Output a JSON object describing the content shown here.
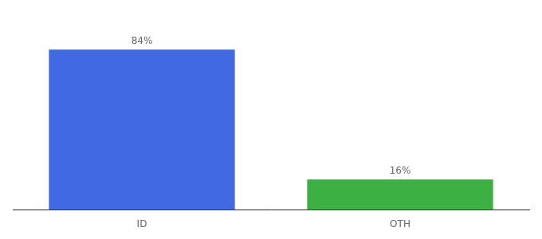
{
  "chart_data": {
    "type": "bar",
    "categories": [
      "ID",
      "OTH"
    ],
    "values": [
      84,
      16
    ],
    "value_labels": [
      "84%",
      "16%"
    ],
    "colors": [
      "#4169E1",
      "#3CB043"
    ],
    "ylim": [
      0,
      100
    ],
    "data_labels": true,
    "tick_labels": "x",
    "grid": false
  }
}
